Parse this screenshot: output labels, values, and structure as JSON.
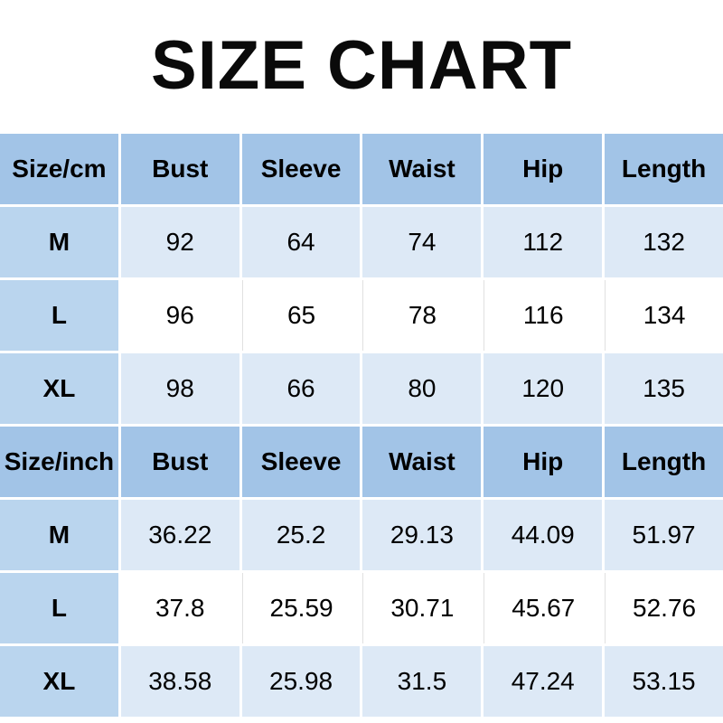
{
  "title": "SIZE CHART",
  "colors": {
    "header_bg": "#a2c4e7",
    "size_column_bg": "#bad5ee",
    "shaded_row_bg": "#dde9f6",
    "white_row_bg": "#ffffff",
    "divider_line": "#e0e0e0",
    "text": "#000000"
  },
  "chart_data": {
    "type": "table",
    "title": "SIZE CHART",
    "sections": [
      {
        "unit": "cm",
        "columns": [
          "Size/cm",
          "Bust",
          "Sleeve",
          "Waist",
          "Hip",
          "Length"
        ],
        "rows": [
          {
            "size": "M",
            "values": [
              "92",
              "64",
              "74",
              "112",
              "132"
            ]
          },
          {
            "size": "L",
            "values": [
              "96",
              "65",
              "78",
              "116",
              "134"
            ]
          },
          {
            "size": "XL",
            "values": [
              "98",
              "66",
              "80",
              "120",
              "135"
            ]
          }
        ]
      },
      {
        "unit": "inch",
        "columns": [
          "Size/inch",
          "Bust",
          "Sleeve",
          "Waist",
          "Hip",
          "Length"
        ],
        "rows": [
          {
            "size": "M",
            "values": [
              "36.22",
              "25.2",
              "29.13",
              "44.09",
              "51.97"
            ]
          },
          {
            "size": "L",
            "values": [
              "37.8",
              "25.59",
              "30.71",
              "45.67",
              "52.76"
            ]
          },
          {
            "size": "XL",
            "values": [
              "38.58",
              "25.98",
              "31.5",
              "47.24",
              "53.15"
            ]
          }
        ]
      }
    ]
  }
}
